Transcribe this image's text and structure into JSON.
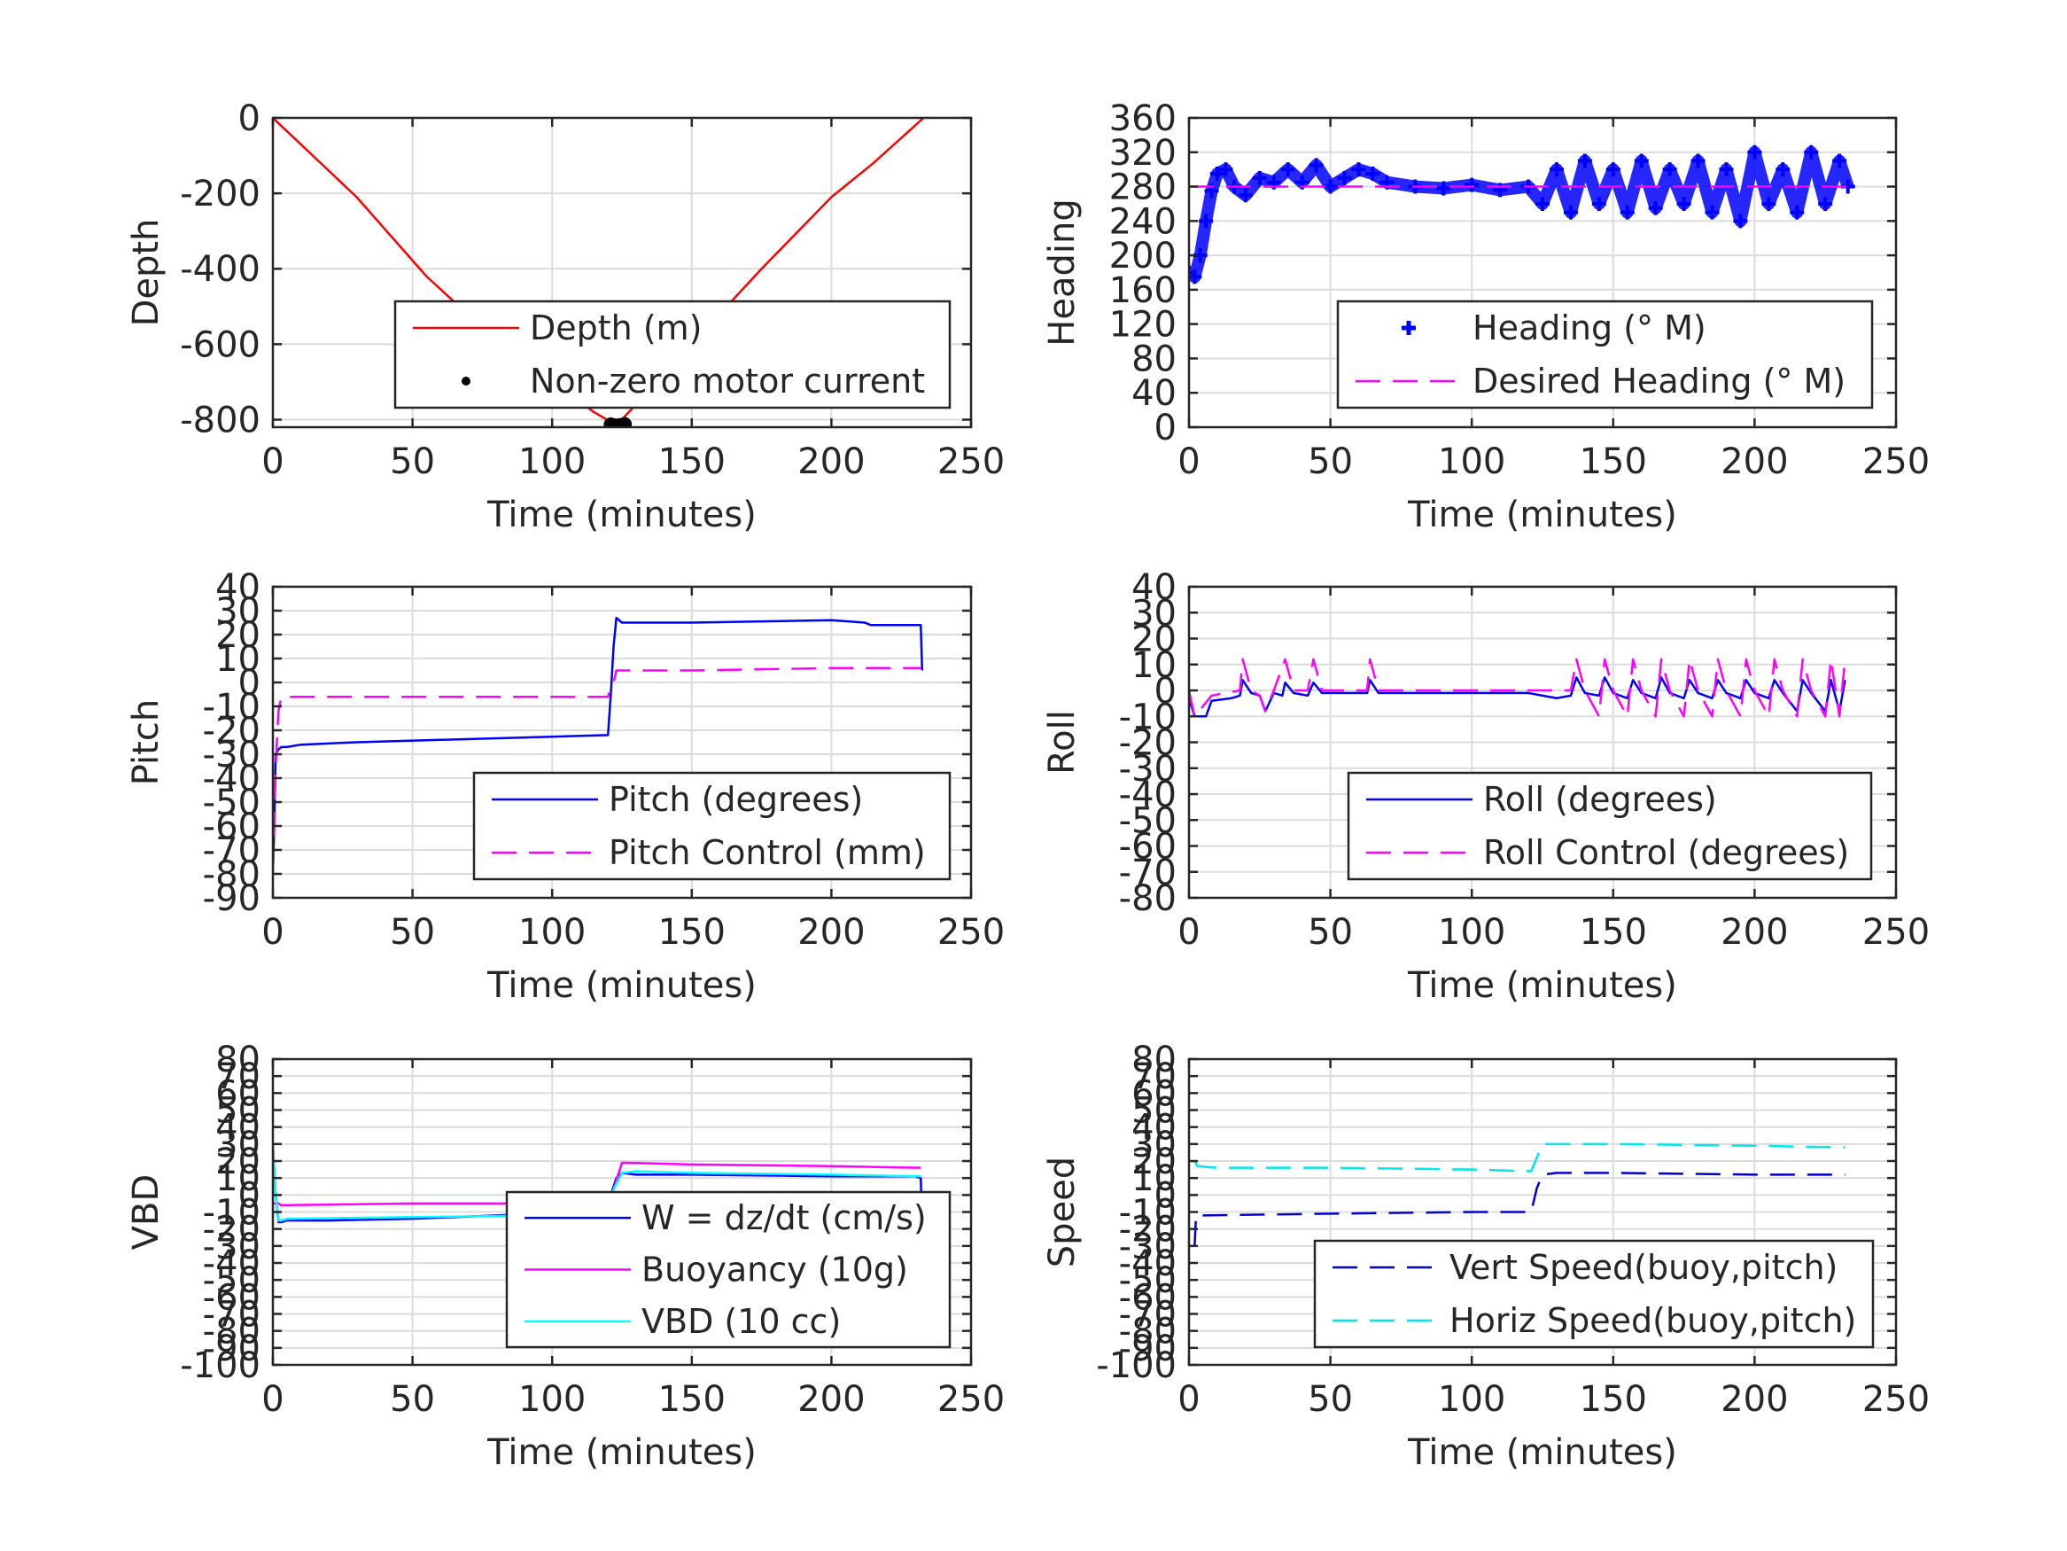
{
  "chart_data": [
    {
      "id": "depth",
      "type": "line",
      "xlabel": "Time (minutes)",
      "ylabel": "Depth",
      "xlim": [
        0,
        250
      ],
      "ylim": [
        -820,
        0
      ],
      "xticks": [
        0,
        50,
        100,
        150,
        200,
        250
      ],
      "yticks": [
        0,
        -200,
        -400,
        -600,
        -800
      ],
      "grid": true,
      "legend": "bottom-right",
      "series": [
        {
          "name": "Depth (m)",
          "color": "#ff0000",
          "style": "solid",
          "x": [
            0,
            10,
            30,
            55,
            80,
            100,
            115,
            123,
            130,
            150,
            175,
            200,
            215,
            233
          ],
          "y": [
            0,
            -70,
            -210,
            -420,
            -590,
            -700,
            -780,
            -815,
            -760,
            -600,
            -400,
            -210,
            -120,
            0
          ]
        },
        {
          "name": "Non-zero motor current",
          "color": "#000000",
          "style": "dots",
          "x": [
            121,
            122,
            123,
            124,
            125,
            126
          ],
          "y": [
            -813,
            -815,
            -816,
            -815,
            -814,
            -812
          ]
        }
      ]
    },
    {
      "id": "heading",
      "type": "scatter",
      "xlabel": "Time (minutes)",
      "ylabel": "Heading",
      "xlim": [
        0,
        250
      ],
      "ylim": [
        0,
        360
      ],
      "xticks": [
        0,
        50,
        100,
        150,
        200,
        250
      ],
      "yticks": [
        0,
        40,
        80,
        120,
        160,
        200,
        240,
        280,
        320,
        360
      ],
      "grid": true,
      "legend": "bottom-right",
      "series": [
        {
          "name": "Heading (° M)",
          "color": "#0000ff",
          "style": "plus",
          "x": [
            0,
            2,
            4,
            6,
            8,
            10,
            13,
            16,
            20,
            25,
            30,
            35,
            40,
            45,
            50,
            55,
            60,
            65,
            70,
            80,
            90,
            100,
            110,
            120,
            125,
            130,
            135,
            140,
            145,
            150,
            155,
            160,
            165,
            170,
            175,
            180,
            185,
            190,
            195,
            200,
            205,
            210,
            215,
            220,
            225,
            230,
            233
          ],
          "y": [
            180,
            175,
            200,
            240,
            275,
            295,
            300,
            280,
            270,
            290,
            285,
            300,
            285,
            305,
            280,
            290,
            300,
            295,
            285,
            280,
            278,
            282,
            276,
            280,
            260,
            300,
            250,
            310,
            260,
            300,
            250,
            310,
            255,
            300,
            260,
            310,
            250,
            300,
            240,
            320,
            260,
            300,
            250,
            320,
            260,
            310,
            280
          ]
        },
        {
          "name": "Desired Heading (° M)",
          "color": "#ff00ff",
          "style": "dashed",
          "x": [
            0,
            233
          ],
          "y": [
            280,
            280
          ]
        }
      ]
    },
    {
      "id": "pitch",
      "type": "line",
      "xlabel": "Time (minutes)",
      "ylabel": "Pitch",
      "xlim": [
        0,
        250
      ],
      "ylim": [
        -90,
        40
      ],
      "xticks": [
        0,
        50,
        100,
        150,
        200,
        250
      ],
      "yticks": [
        40,
        30,
        20,
        10,
        0,
        -10,
        -20,
        -30,
        -40,
        -50,
        -60,
        -70,
        -80,
        -90
      ],
      "grid": true,
      "legend": "bottom-right",
      "series": [
        {
          "name": "Pitch (degrees)",
          "color": "#0000ff",
          "style": "solid",
          "x": [
            0,
            0.5,
            1,
            2,
            3,
            5,
            10,
            30,
            60,
            90,
            120,
            121,
            122,
            123,
            125,
            150,
            200,
            212,
            214,
            232,
            232.5
          ],
          "y": [
            -80,
            -60,
            -30,
            -28,
            -27,
            -27,
            -26,
            -25,
            -24,
            -23,
            -22,
            -5,
            15,
            27,
            25,
            25,
            26,
            25,
            24,
            24,
            5
          ]
        },
        {
          "name": "Pitch Control (mm)",
          "color": "#ff00ff",
          "style": "dashed",
          "x": [
            0,
            1,
            2,
            3,
            120,
            121,
            122,
            123,
            150,
            200,
            232
          ],
          "y": [
            -80,
            -35,
            -12,
            -6,
            -6,
            -2,
            0,
            5,
            5,
            6,
            6
          ]
        }
      ]
    },
    {
      "id": "roll",
      "type": "line",
      "xlabel": "Time (minutes)",
      "ylabel": "Roll",
      "xlim": [
        0,
        250
      ],
      "ylim": [
        -80,
        40
      ],
      "xticks": [
        0,
        50,
        100,
        150,
        200,
        250
      ],
      "yticks": [
        40,
        30,
        20,
        10,
        0,
        -10,
        -20,
        -30,
        -40,
        -50,
        -60,
        -70,
        -80
      ],
      "grid": true,
      "legend": "bottom-right",
      "series": [
        {
          "name": "Roll (degrees)",
          "color": "#0000ff",
          "style": "solid",
          "x": [
            0,
            2,
            6,
            8,
            15,
            18,
            19,
            22,
            25,
            27,
            30,
            33,
            34,
            37,
            42,
            44,
            47,
            55,
            63,
            64,
            67,
            100,
            120,
            125,
            130,
            135,
            137,
            140,
            145,
            147,
            150,
            155,
            157,
            160,
            165,
            167,
            170,
            175,
            177,
            180,
            185,
            187,
            190,
            195,
            197,
            200,
            205,
            207,
            210,
            215,
            217,
            220,
            225,
            227,
            230,
            232
          ],
          "y": [
            -3,
            -10,
            -10,
            -4,
            -3,
            -2,
            4,
            -1,
            -2,
            -8,
            -1,
            -2,
            3,
            -1,
            -2,
            3,
            -1,
            -1,
            -1,
            4,
            -1,
            -1,
            -1,
            -2,
            -3,
            -2,
            5,
            -1,
            -2,
            5,
            -1,
            -3,
            4,
            -1,
            -3,
            5,
            -1,
            -3,
            4,
            -1,
            -3,
            4,
            -1,
            -3,
            4,
            -1,
            -3,
            4,
            -1,
            -8,
            4,
            -1,
            -8,
            4,
            -8,
            4
          ]
        },
        {
          "name": "Roll Control (degrees)",
          "color": "#ff00ff",
          "style": "dashed",
          "x": [
            0,
            2,
            8,
            18,
            19,
            22,
            25,
            27,
            30,
            34,
            37,
            42,
            44,
            47,
            63,
            64,
            67,
            120,
            135,
            137,
            140,
            145,
            147,
            150,
            155,
            157,
            160,
            165,
            167,
            170,
            175,
            177,
            180,
            185,
            187,
            190,
            195,
            197,
            200,
            205,
            207,
            210,
            215,
            217,
            220,
            225,
            227,
            230,
            232
          ],
          "y": [
            0,
            -10,
            -2,
            0,
            12,
            0,
            -2,
            -8,
            0,
            12,
            0,
            0,
            12,
            0,
            0,
            12,
            0,
            0,
            0,
            12,
            0,
            -10,
            12,
            0,
            -10,
            12,
            0,
            -10,
            12,
            0,
            -10,
            12,
            0,
            -10,
            12,
            0,
            -10,
            12,
            0,
            -10,
            12,
            0,
            -10,
            12,
            0,
            -10,
            12,
            -10,
            12
          ]
        }
      ]
    },
    {
      "id": "vbd",
      "type": "line",
      "xlabel": "Time (minutes)",
      "ylabel": "VBD",
      "xlim": [
        0,
        250
      ],
      "ylim": [
        -100,
        80
      ],
      "xticks": [
        0,
        50,
        100,
        150,
        200,
        250
      ],
      "yticks": [
        80,
        70,
        60,
        50,
        40,
        30,
        20,
        10,
        0,
        -10,
        -20,
        -30,
        -40,
        -50,
        -60,
        -70,
        -80,
        -90,
        -100
      ],
      "ytick_labels": [
        "80",
        "70",
        "60",
        "50",
        "40",
        "30",
        "20",
        "10",
        "0",
        "-10",
        "-20",
        "-30",
        "-40",
        "-50",
        "-60",
        "-70",
        "-80",
        "-90",
        "-100"
      ],
      "grid": true,
      "legend": "bottom-right",
      "series": [
        {
          "name": "W = dz/dt (cm/s)",
          "color": "#0000ff",
          "style": "solid",
          "x": [
            0,
            1,
            2,
            3,
            5,
            20,
            50,
            80,
            100,
            120,
            121,
            123,
            125,
            130,
            150,
            200,
            230,
            232,
            232.5
          ],
          "y": [
            30,
            0,
            -16,
            -16,
            -15,
            -15,
            -14,
            -12,
            -11,
            -10,
            0,
            10,
            13,
            12,
            12,
            11,
            11,
            10,
            -20
          ]
        },
        {
          "name": "Buoyancy (10g)",
          "color": "#ff00ff",
          "style": "solid",
          "x": [
            0,
            2,
            3,
            50,
            100,
            120,
            121,
            125,
            150,
            200,
            232
          ],
          "y": [
            -5,
            -5,
            -6,
            -5,
            -5,
            -5,
            -2,
            19,
            18,
            17,
            16
          ]
        },
        {
          "name": "VBD (10 cc)",
          "color": "#00ffff",
          "style": "solid",
          "x": [
            0,
            1,
            2,
            3,
            5,
            50,
            100,
            120,
            121,
            125,
            130,
            150,
            200,
            232
          ],
          "y": [
            30,
            0,
            -15,
            -15,
            -14,
            -13,
            -12,
            -11,
            0,
            13,
            14,
            13,
            12,
            11
          ]
        }
      ]
    },
    {
      "id": "speed",
      "type": "line",
      "xlabel": "Time (minutes)",
      "ylabel": "Speed",
      "xlim": [
        0,
        250
      ],
      "ylim": [
        -100,
        80
      ],
      "xticks": [
        0,
        50,
        100,
        150,
        200,
        250
      ],
      "yticks": [
        80,
        70,
        60,
        50,
        40,
        30,
        20,
        10,
        0,
        -10,
        -20,
        -30,
        -40,
        -50,
        -60,
        -70,
        -80,
        -90,
        -100
      ],
      "ytick_labels": [
        "80",
        "70",
        "60",
        "50",
        "40",
        "30",
        "20",
        "10",
        "0",
        "-10",
        "-20",
        "-30",
        "-40",
        "-50",
        "-60",
        "-70",
        "-80",
        "-90",
        "-100"
      ],
      "grid": true,
      "legend": "bottom-right",
      "series": [
        {
          "name": "Vert Speed(buoy,pitch)",
          "color": "#0000cc",
          "style": "dashed",
          "x": [
            2,
            2.5,
            5,
            50,
            100,
            121,
            123,
            125,
            130,
            150,
            200,
            232
          ],
          "y": [
            -30,
            -12,
            -12,
            -11,
            -10,
            -10,
            4,
            12,
            13,
            13,
            12,
            12
          ]
        },
        {
          "name": "Horiz Speed(buoy,pitch)",
          "color": "#00e5ee",
          "style": "dashed",
          "x": [
            2,
            3,
            10,
            50,
            100,
            121,
            123,
            125,
            130,
            150,
            200,
            232
          ],
          "y": [
            20,
            17,
            16,
            16,
            15,
            14,
            22,
            30,
            30,
            30,
            29,
            28
          ]
        }
      ]
    }
  ]
}
